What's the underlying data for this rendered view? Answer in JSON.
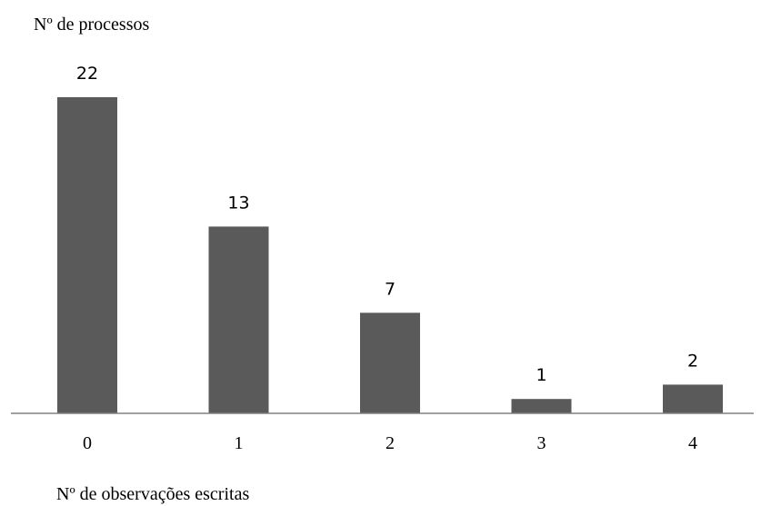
{
  "chart_data": {
    "type": "bar",
    "ylabel": "Nº de processos",
    "xlabel": "Nº de observações escritas",
    "categories": [
      "0",
      "1",
      "2",
      "3",
      "4"
    ],
    "values": [
      22,
      13,
      7,
      1,
      2
    ],
    "data_labels": [
      "22",
      "13",
      "7",
      "1",
      "2"
    ],
    "ylim": [
      0,
      22
    ],
    "grid": false,
    "legend": "none",
    "bar_color": "#5a5a5a",
    "axis_color": "#808080"
  }
}
